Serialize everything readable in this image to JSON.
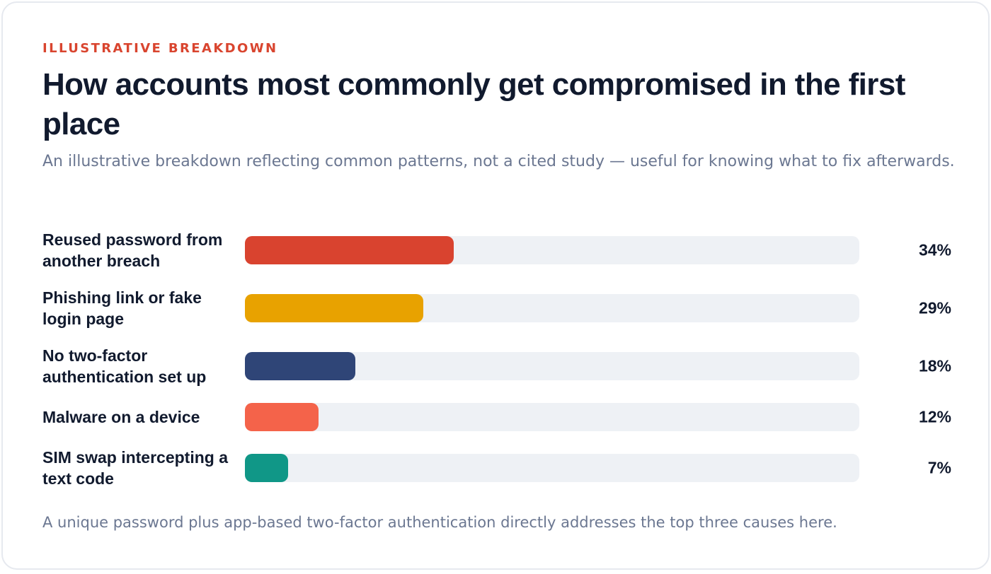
{
  "eyebrow": "ILLUSTRATIVE BREAKDOWN",
  "title": "How accounts most commonly get compromised in the first place",
  "subtitle": "An illustrative breakdown reflecting common patterns, not a cited study — useful for knowing what to fix afterwards.",
  "footnote": "A unique password plus app-based two-factor authentication directly addresses the top three causes here.",
  "colors": {
    "accent": "#d9452f",
    "track": "#eef1f5",
    "text": "#111a2e",
    "muted": "#6b7791"
  },
  "chart_data": {
    "type": "bar",
    "orientation": "horizontal",
    "title": "How accounts most commonly get compromised in the first place",
    "xlim": [
      0,
      100
    ],
    "grid": false,
    "categories": [
      "Reused password from another breach",
      "Phishing link or fake login page",
      "No two-factor authentication set up",
      "Malware on a device",
      "SIM swap intercepting a text code"
    ],
    "values": [
      34,
      29,
      18,
      12,
      7
    ],
    "value_labels": [
      "34%",
      "29%",
      "18%",
      "12%",
      "7%"
    ],
    "bar_colors": [
      "#d9432f",
      "#e8a200",
      "#2f4577",
      "#f4634a",
      "#109787"
    ]
  }
}
